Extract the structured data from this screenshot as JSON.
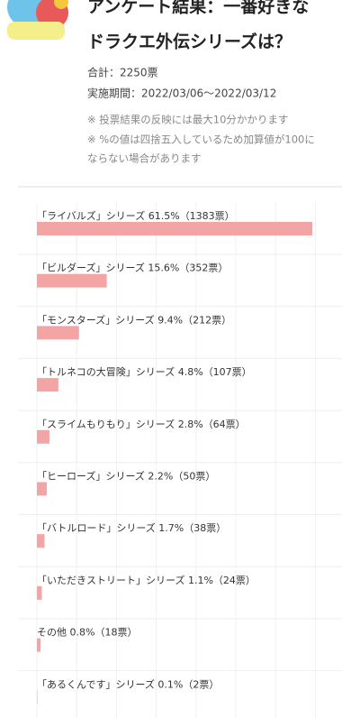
{
  "header": {
    "title_lines": [
      "アンケート結果：一番好きな",
      "ドラクエ外伝シリーズは？"
    ],
    "total": "合計：2250票",
    "period": "実施期間：2022/03/06〜2022/03/12",
    "notes": [
      "※ 投票結果の反映には最大10分かかります",
      "※ %の値は四捨五入しているため加算値が100に",
      "ならない場合があります"
    ]
  },
  "chart_data": {
    "type": "hbar",
    "color": "#f3a5a5",
    "categories": [
      "「ライバルズ」シリーズ",
      "「ビルダーズ」シリーズ",
      "「モンスターズ」シリーズ",
      "「トルネコの大冒険」シリーズ",
      "「スライムもりもり」シリーズ",
      "「ヒーローズ」シリーズ",
      "「バトルロード」シリーズ",
      "「いただきストリート」シリーズ",
      "その他",
      "「あるくんです」シリーズ"
    ],
    "values": [
      61.5,
      15.6,
      9.4,
      4.8,
      2.8,
      2.2,
      1.7,
      1.1,
      0.8,
      0.1
    ],
    "value_labels": [
      "61.5%",
      "15.6%",
      "9.4%",
      "4.8%",
      "2.8%",
      "2.2%",
      "1.7%",
      "1.1%",
      "0.8%",
      "0.1%"
    ],
    "votes": [
      1383,
      352,
      212,
      107,
      64,
      50,
      38,
      24,
      18,
      2
    ],
    "vote_labels": [
      "（1383票）",
      "（352票）",
      "（212票）",
      "（107票）",
      "（64票）",
      "（50票）",
      "（38票）",
      "（24票）",
      "（18票）",
      "（2票）"
    ],
    "xlim": [
      0,
      61.5
    ]
  }
}
